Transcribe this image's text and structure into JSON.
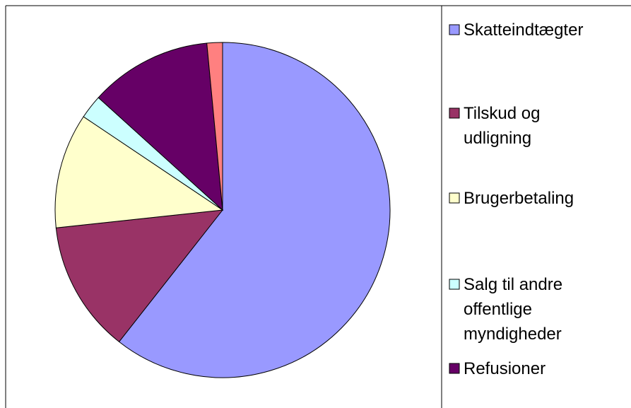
{
  "chart_data": {
    "type": "pie",
    "categories": [
      "Skatteindtægter",
      "Tilskud og udligning",
      "Brugerbetaling",
      "Salg til andre offentlige myndigheder",
      "Refusioner",
      null
    ],
    "values": [
      60.6,
      12.7,
      11.1,
      2.3,
      11.8,
      1.5
    ],
    "colors": [
      "#9999ff",
      "#993366",
      "#ffffcc",
      "#ccffff",
      "#660066",
      "#ff8080"
    ],
    "legend": "right"
  }
}
